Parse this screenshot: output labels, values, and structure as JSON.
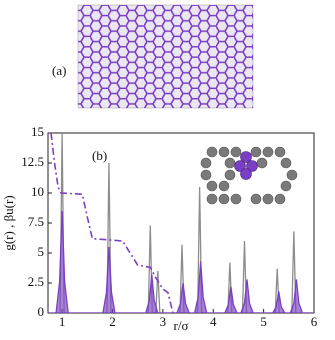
{
  "panel_a": {
    "label": "(a)"
  },
  "chart_data": {
    "type": "line",
    "panel_label": "(b)",
    "x_label": "r/σ",
    "y_label": "g(r) , βu(r)",
    "xlim": [
      0.72,
      6
    ],
    "xticks": [
      1,
      2,
      3,
      4,
      5,
      6
    ],
    "ylim": [
      0,
      15
    ],
    "yticks": [
      0,
      2.5,
      5,
      7.5,
      10,
      12.5,
      15
    ],
    "series": [
      {
        "color": "#8c8c8c",
        "fill": false,
        "dashed": false,
        "x": [
          0.72,
          0.96,
          1.0,
          1.04,
          1.89,
          1.93,
          1.97,
          2.71,
          2.75,
          2.79,
          2.86,
          2.9,
          2.94,
          3.34,
          3.38,
          3.42,
          3.69,
          3.73,
          3.77,
          4.29,
          4.33,
          4.37,
          4.58,
          4.62,
          4.66,
          5.23,
          5.27,
          5.31,
          5.56,
          5.6,
          5.64,
          6.0
        ],
        "y": [
          0,
          0,
          15,
          0,
          0,
          12.5,
          0,
          0,
          7.3,
          0,
          0,
          3.5,
          0,
          0,
          5.7,
          0,
          0,
          10.5,
          0,
          0,
          4.2,
          0,
          0,
          6.0,
          0,
          0,
          3.7,
          0,
          0,
          6.8,
          0,
          0
        ]
      },
      {
        "color": "#7b3fc4",
        "fill": true,
        "dashed": false,
        "x": [
          0.72,
          0.88,
          0.95,
          1.0,
          1.05,
          1.12,
          1.81,
          1.88,
          1.93,
          1.98,
          2.05,
          2.66,
          2.73,
          2.78,
          2.83,
          2.9,
          3.28,
          3.35,
          3.4,
          3.45,
          3.52,
          3.63,
          3.7,
          3.75,
          3.8,
          3.87,
          4.23,
          4.3,
          4.35,
          4.4,
          4.47,
          4.55,
          4.62,
          4.67,
          4.72,
          4.79,
          5.18,
          5.25,
          5.3,
          5.35,
          5.42,
          5.53,
          5.6,
          5.65,
          5.7,
          5.77,
          6.0
        ],
        "y": [
          0,
          0,
          2.6,
          8.5,
          2.6,
          0,
          0,
          1.7,
          5.5,
          1.7,
          0,
          0,
          1.0,
          3.2,
          1.0,
          0,
          0,
          0.8,
          2.5,
          0.8,
          0,
          0,
          1.3,
          4.3,
          1.3,
          0,
          0,
          0.7,
          2.2,
          0.7,
          0,
          0,
          0.8,
          2.8,
          0.8,
          0,
          0,
          0.5,
          1.8,
          0.5,
          0,
          0,
          0.8,
          2.8,
          0.8,
          0,
          0
        ]
      },
      {
        "color": "#7b3fc4",
        "fill": false,
        "dashed": true,
        "x": [
          0.78,
          0.85,
          0.92,
          0.98,
          1.4,
          1.5,
          1.6,
          2.2,
          2.35,
          2.5,
          2.75,
          2.85,
          3.0,
          3.1,
          3.2
        ],
        "y": [
          15,
          12.5,
          10.5,
          10,
          9.9,
          8,
          6.2,
          6.0,
          5.0,
          4.0,
          3.8,
          3.0,
          2.0,
          1.7,
          0
        ]
      }
    ]
  }
}
